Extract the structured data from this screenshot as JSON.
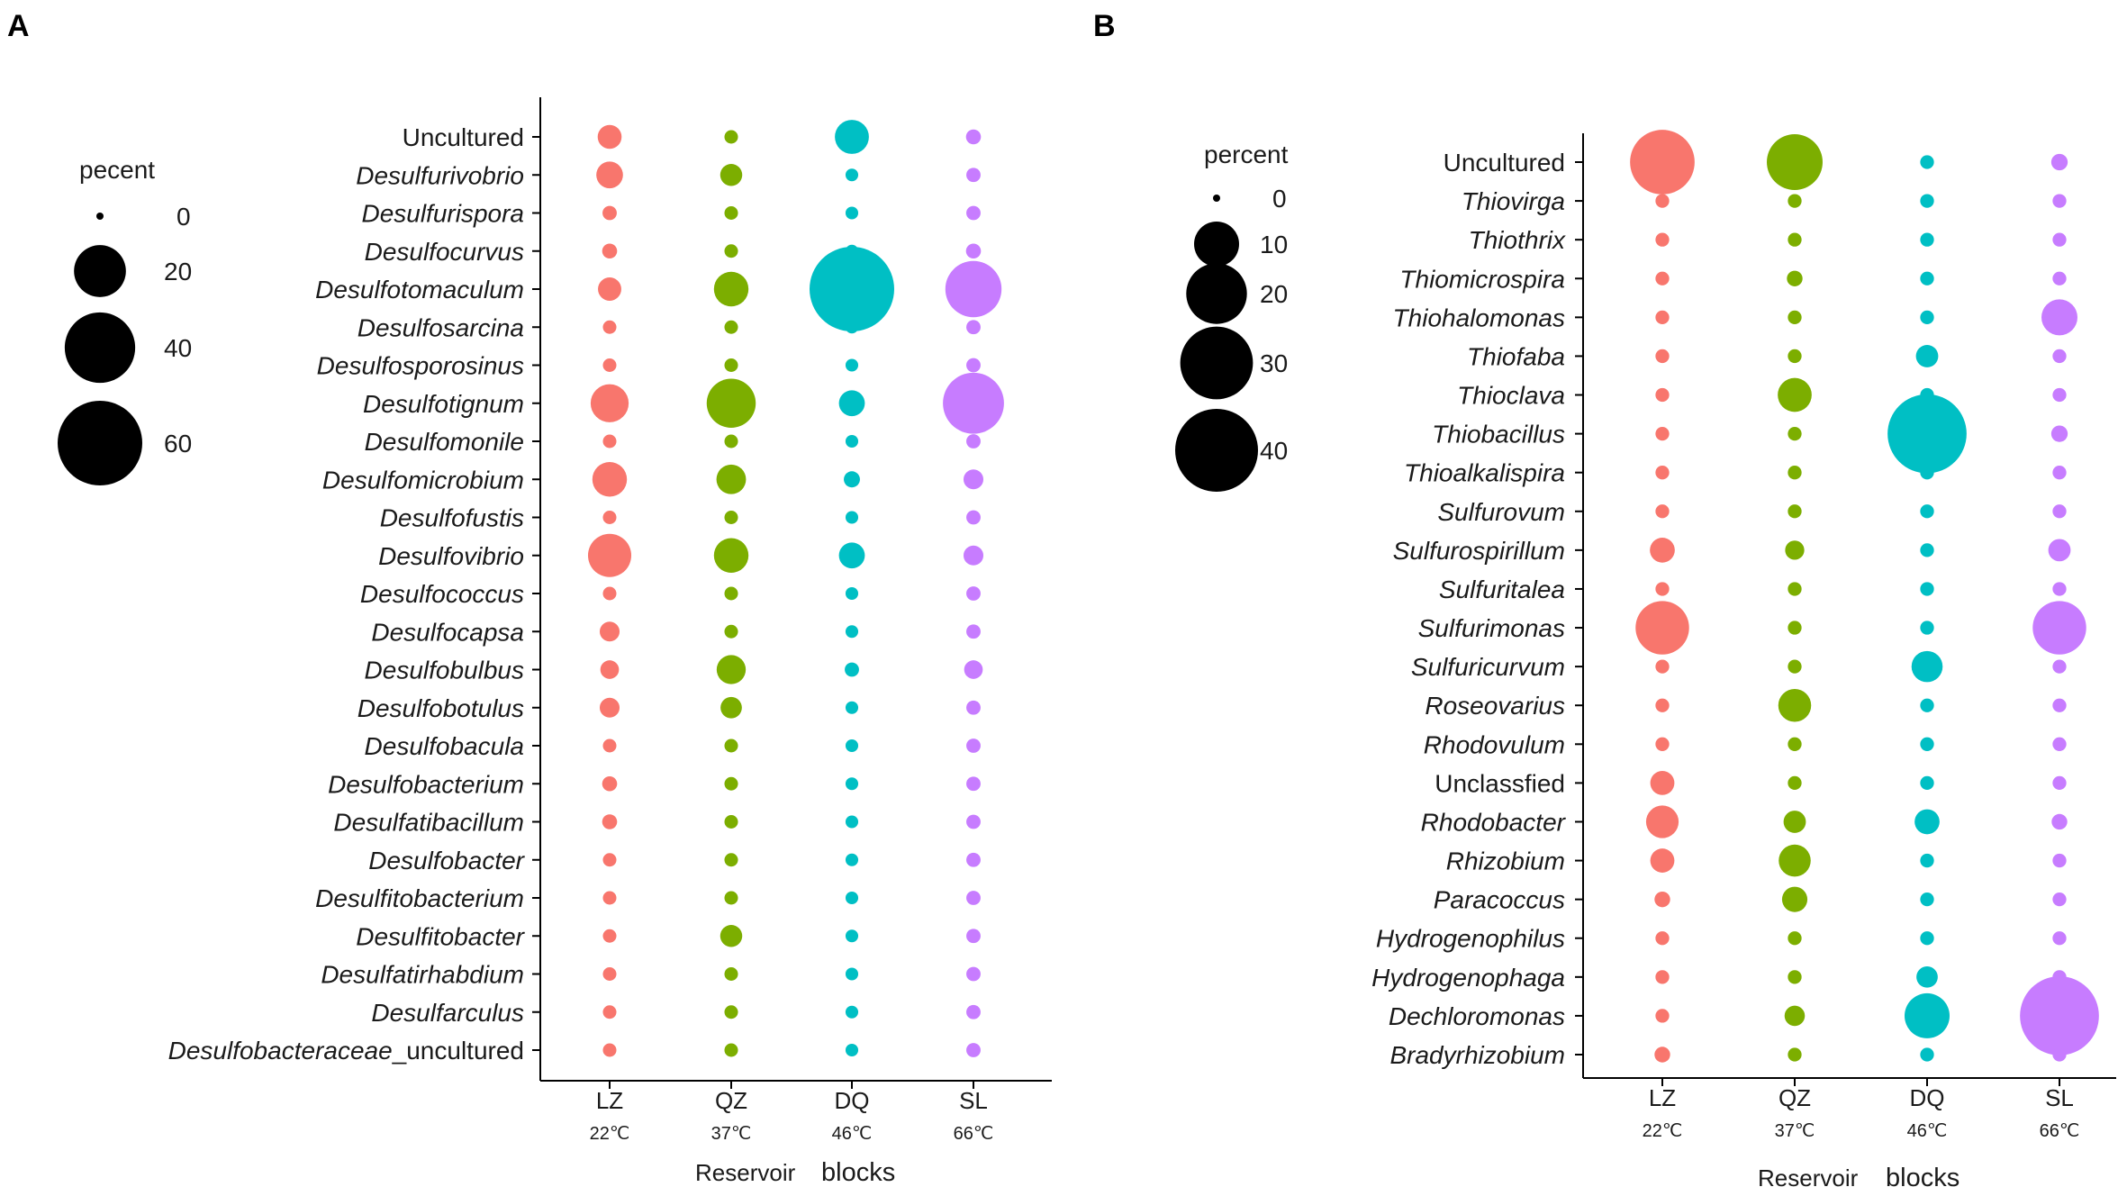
{
  "figure": {
    "letters": [
      "A",
      "B"
    ]
  },
  "chart_data": [
    {
      "type": "scatter",
      "subtype": "bubble",
      "panel": "A",
      "title": "",
      "xlabel": "Reservoir  blocks",
      "xlabel_parts": [
        "Reservoir",
        "blocks"
      ],
      "ylabel": "",
      "categories": [
        "LZ",
        "QZ",
        "DQ",
        "SL"
      ],
      "category_temps": [
        "22℃",
        "37℃",
        "46℃",
        "66℃"
      ],
      "colors": [
        "#F8766D",
        "#7CAE00",
        "#00BFC4",
        "#C77CFF"
      ],
      "legend": {
        "title": "pecent",
        "sizes": [
          0,
          20,
          40,
          60
        ],
        "labels": [
          "0",
          "20",
          "40",
          "60"
        ],
        "max": 60,
        "position": "left"
      },
      "rows": [
        {
          "label": "Uncultured",
          "italic": false,
          "suffix": "",
          "values": [
            2.8,
            0.4,
            7.2,
            0.6
          ]
        },
        {
          "label": "Desulfurivobrio",
          "italic": true,
          "suffix": "",
          "values": [
            3.8,
            2.2,
            0.3,
            0.5
          ]
        },
        {
          "label": "Desulfurispora",
          "italic": true,
          "suffix": "",
          "values": [
            0.5,
            0.4,
            0.3,
            0.5
          ]
        },
        {
          "label": "Desulfocurvus",
          "italic": true,
          "suffix": "",
          "values": [
            0.6,
            0.4,
            0.3,
            0.6
          ]
        },
        {
          "label": "Desulfotomaculum",
          "italic": true,
          "suffix": "",
          "values": [
            2.6,
            7.5,
            60.0,
            24.0
          ]
        },
        {
          "label": "Desulfosarcina",
          "italic": true,
          "suffix": "",
          "values": [
            0.4,
            0.4,
            0.3,
            0.5
          ]
        },
        {
          "label": "Desulfosporosinus",
          "italic": true,
          "suffix": "",
          "values": [
            0.4,
            0.4,
            0.3,
            0.5
          ]
        },
        {
          "label": "Desulfotignum",
          "italic": true,
          "suffix": "",
          "values": [
            9.5,
            17.5,
            3.5,
            29.0
          ]
        },
        {
          "label": "Desulfomonile",
          "italic": true,
          "suffix": "",
          "values": [
            0.4,
            0.4,
            0.3,
            0.5
          ]
        },
        {
          "label": "Desulfomicrobium",
          "italic": true,
          "suffix": "",
          "values": [
            7.5,
            5.0,
            0.8,
            1.6
          ]
        },
        {
          "label": "Desulfofustis",
          "italic": true,
          "suffix": "",
          "values": [
            0.4,
            0.4,
            0.3,
            0.5
          ]
        },
        {
          "label": "Desulfovibrio",
          "italic": true,
          "suffix": "",
          "values": [
            13.0,
            7.5,
            3.5,
            1.6
          ]
        },
        {
          "label": "Desulfococcus",
          "italic": true,
          "suffix": "",
          "values": [
            0.4,
            0.4,
            0.3,
            0.5
          ]
        },
        {
          "label": "Desulfocapsa",
          "italic": true,
          "suffix": "",
          "values": [
            1.6,
            0.4,
            0.3,
            0.5
          ]
        },
        {
          "label": "Desulfobulbus",
          "italic": true,
          "suffix": "",
          "values": [
            1.3,
            4.8,
            0.5,
            1.3
          ]
        },
        {
          "label": "Desulfobotulus",
          "italic": true,
          "suffix": "",
          "values": [
            1.6,
            2.0,
            0.3,
            0.5
          ]
        },
        {
          "label": "Desulfobacula",
          "italic": true,
          "suffix": "",
          "values": [
            0.4,
            0.4,
            0.3,
            0.5
          ]
        },
        {
          "label": "Desulfobacterium",
          "italic": true,
          "suffix": "",
          "values": [
            0.6,
            0.4,
            0.3,
            0.5
          ]
        },
        {
          "label": "Desulfatibacillum",
          "italic": true,
          "suffix": "",
          "values": [
            0.6,
            0.4,
            0.3,
            0.5
          ]
        },
        {
          "label": "Desulfobacter",
          "italic": true,
          "suffix": "",
          "values": [
            0.4,
            0.4,
            0.3,
            0.5
          ]
        },
        {
          "label": "Desulfitobacterium",
          "italic": true,
          "suffix": "",
          "values": [
            0.4,
            0.4,
            0.3,
            0.5
          ]
        },
        {
          "label": "Desulfitobacter",
          "italic": true,
          "suffix": "",
          "values": [
            0.4,
            2.2,
            0.3,
            0.5
          ]
        },
        {
          "label": "Desulfatirhabdium",
          "italic": true,
          "suffix": "",
          "values": [
            0.4,
            0.4,
            0.3,
            0.5
          ]
        },
        {
          "label": "Desulfarculus",
          "italic": true,
          "suffix": "",
          "values": [
            0.4,
            0.4,
            0.3,
            0.5
          ]
        },
        {
          "label": "Desulfobacteraceae",
          "italic": true,
          "suffix": "_uncultured",
          "values": [
            0.4,
            0.4,
            0.3,
            0.5
          ]
        }
      ]
    },
    {
      "type": "scatter",
      "subtype": "bubble",
      "panel": "B",
      "title": "",
      "xlabel": "Reservoir  blocks",
      "xlabel_parts": [
        "Reservoir",
        "blocks"
      ],
      "ylabel": "",
      "categories": [
        "LZ",
        "QZ",
        "DQ",
        "SL"
      ],
      "category_temps": [
        "22℃",
        "37℃",
        "46℃",
        "66℃"
      ],
      "colors": [
        "#F8766D",
        "#7CAE00",
        "#00BFC4",
        "#C77CFF"
      ],
      "legend": {
        "title": "percent",
        "sizes": [
          0,
          10,
          20,
          30,
          40
        ],
        "labels": [
          "0",
          "10",
          "20",
          "30",
          "40"
        ],
        "max": 40,
        "position": "left"
      },
      "rows": [
        {
          "label": "Uncultured",
          "italic": false,
          "suffix": "",
          "values": [
            23.0,
            16.5,
            0.3,
            0.6
          ]
        },
        {
          "label": "Thiovirga",
          "italic": true,
          "suffix": "",
          "values": [
            0.3,
            0.3,
            0.3,
            0.3
          ]
        },
        {
          "label": "Thiothrix",
          "italic": true,
          "suffix": "",
          "values": [
            0.3,
            0.3,
            0.3,
            0.3
          ]
        },
        {
          "label": "Thiomicrospira",
          "italic": true,
          "suffix": "",
          "values": [
            0.3,
            0.5,
            0.3,
            0.3
          ]
        },
        {
          "label": "Thiohalomonas",
          "italic": true,
          "suffix": "",
          "values": [
            0.3,
            0.3,
            0.3,
            5.8
          ]
        },
        {
          "label": "Thiofaba",
          "italic": true,
          "suffix": "",
          "values": [
            0.3,
            0.3,
            1.6,
            0.3
          ]
        },
        {
          "label": "Thioclava",
          "italic": true,
          "suffix": "",
          "values": [
            0.3,
            5.0,
            0.3,
            0.3
          ]
        },
        {
          "label": "Thiobacillus",
          "italic": true,
          "suffix": "",
          "values": [
            0.3,
            0.3,
            36.0,
            0.6
          ]
        },
        {
          "label": "Thioalkalispira",
          "italic": true,
          "suffix": "",
          "values": [
            0.3,
            0.3,
            0.3,
            0.3
          ]
        },
        {
          "label": "Sulfurovum",
          "italic": true,
          "suffix": "",
          "values": [
            0.3,
            0.3,
            0.3,
            0.3
          ]
        },
        {
          "label": "Sulfurospirillum",
          "italic": true,
          "suffix": "",
          "values": [
            2.2,
            1.0,
            0.3,
            1.6
          ]
        },
        {
          "label": "Sulfuritalea",
          "italic": true,
          "suffix": "",
          "values": [
            0.3,
            0.3,
            0.3,
            0.3
          ]
        },
        {
          "label": "Sulfurimonas",
          "italic": true,
          "suffix": "",
          "values": [
            15.0,
            0.3,
            0.3,
            15.0
          ]
        },
        {
          "label": "Sulfuricurvum",
          "italic": true,
          "suffix": "",
          "values": [
            0.3,
            0.3,
            4.0,
            0.3
          ]
        },
        {
          "label": "Roseovarius",
          "italic": true,
          "suffix": "",
          "values": [
            0.3,
            4.6,
            0.3,
            0.3
          ]
        },
        {
          "label": "Rhodovulum",
          "italic": true,
          "suffix": "",
          "values": [
            0.3,
            0.3,
            0.3,
            0.3
          ]
        },
        {
          "label": "Unclassfied",
          "italic": false,
          "suffix": "",
          "values": [
            2.0,
            0.3,
            0.3,
            0.3
          ]
        },
        {
          "label": "Rhodobacter",
          "italic": true,
          "suffix": "",
          "values": [
            4.5,
            1.6,
            2.2,
            0.5
          ]
        },
        {
          "label": "Rhizobium",
          "italic": true,
          "suffix": "",
          "values": [
            2.0,
            4.3,
            0.3,
            0.3
          ]
        },
        {
          "label": "Paracoccus",
          "italic": true,
          "suffix": "",
          "values": [
            0.5,
            2.3,
            0.3,
            0.3
          ]
        },
        {
          "label": "Hydrogenophilus",
          "italic": true,
          "suffix": "",
          "values": [
            0.3,
            0.3,
            0.3,
            0.3
          ]
        },
        {
          "label": "Hydrogenophaga",
          "italic": true,
          "suffix": "",
          "values": [
            0.3,
            0.3,
            1.4,
            0.3
          ]
        },
        {
          "label": "Dechloromonas",
          "italic": true,
          "suffix": "",
          "values": [
            0.3,
            1.2,
            10.0,
            36.0
          ]
        },
        {
          "label": "Bradyrhizobium",
          "italic": true,
          "suffix": "",
          "values": [
            0.5,
            0.3,
            0.3,
            0.3
          ]
        }
      ]
    }
  ]
}
